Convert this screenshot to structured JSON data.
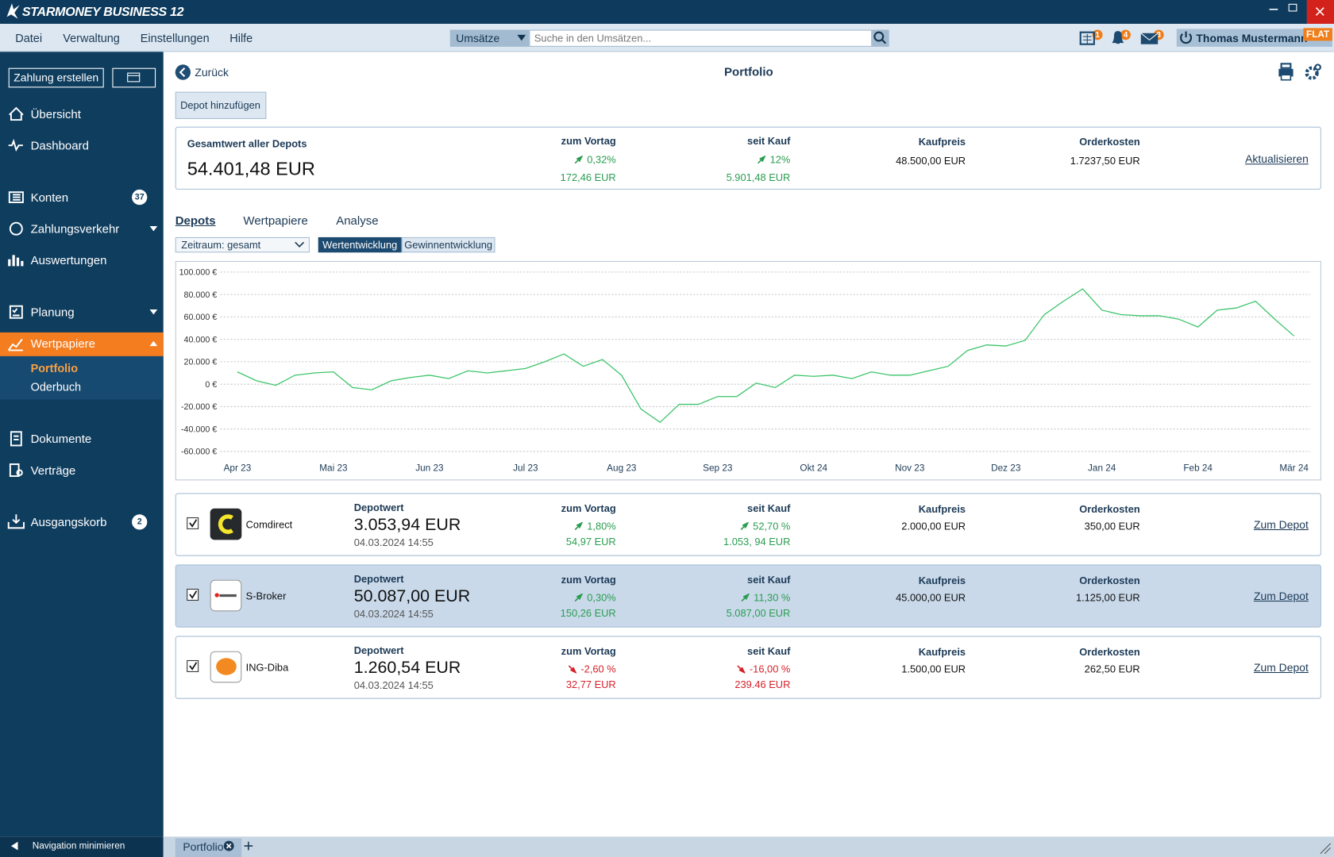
{
  "app": {
    "title": "STARMONEY BUSINESS 12"
  },
  "menu": [
    "Datei",
    "Verwaltung",
    "Einstellungen",
    "Hilfe"
  ],
  "search": {
    "scope": "Umsätze",
    "placeholder": "Suche in den Umsätzen..."
  },
  "notifications": [
    1,
    4,
    3
  ],
  "user": {
    "name": "Thomas Mustermann",
    "plan": "FLAT"
  },
  "sidebar": {
    "create": "Zahlung erstellen",
    "items": [
      {
        "label": "Übersicht"
      },
      {
        "label": "Dashboard"
      },
      {
        "label": "Konten",
        "badge": 37
      },
      {
        "label": "Zahlungsverkehr"
      },
      {
        "label": "Auswertungen"
      },
      {
        "label": "Planung"
      },
      {
        "label": "Wertpapiere"
      },
      {
        "label": "Dokumente"
      },
      {
        "label": "Verträge"
      },
      {
        "label": "Ausgangskorb",
        "badge": 2
      }
    ],
    "subitems": [
      "Portfolio",
      "Oderbuch"
    ],
    "minimize": "Navigation minimieren"
  },
  "page": {
    "back": "Zurück",
    "title": "Portfolio",
    "add": "Depot hinzufügen"
  },
  "headers": {
    "value": "Depotwert",
    "day": "zum Vortag",
    "since": "seit Kauf",
    "price": "Kaufpreis",
    "cost": "Orderkosten"
  },
  "summary": {
    "label": "Gesamtwert aller Depots",
    "value": "54.401,48 EUR",
    "day_pct": "0,32%",
    "day_abs": "172,46 EUR",
    "since_pct": "12%",
    "since_abs": "5.901,48 EUR",
    "price": "48.500,00 EUR",
    "cost": "1.7237,50 EUR",
    "action": "Aktualisieren"
  },
  "tabs": [
    "Depots",
    "Wertpapiere",
    "Analyse"
  ],
  "filters": {
    "period": "Zeitraum: gesamt",
    "modes": [
      "Wertentwicklung",
      "Gewinnentwicklung"
    ]
  },
  "chart_data": {
    "type": "line",
    "color": "#3cc46a",
    "grid": true,
    "categories": [
      "Apr 23",
      null,
      null,
      null,
      null,
      "Mai 23",
      null,
      null,
      null,
      null,
      "Jun 23",
      null,
      null,
      null,
      null,
      "Jul 23",
      null,
      null,
      null,
      null,
      "Aug 23",
      null,
      null,
      null,
      null,
      "Sep 23",
      null,
      null,
      null,
      null,
      "Okt 24",
      null,
      null,
      null,
      null,
      "Nov 23",
      null,
      null,
      null,
      null,
      "Dez 23",
      null,
      null,
      null,
      null,
      "Jan 24",
      null,
      null,
      null,
      null,
      "Feb 24",
      null,
      null,
      null,
      null,
      "Mär 24"
    ],
    "values": [
      11000,
      3000,
      -1000,
      8000,
      10000,
      11000,
      -3000,
      -5000,
      3000,
      6000,
      8000,
      5000,
      12000,
      10000,
      12000,
      14000,
      20000,
      27000,
      16000,
      22000,
      8000,
      -22000,
      -34000,
      -18000,
      -18000,
      -11000,
      -11000,
      1000,
      -3000,
      8000,
      7000,
      8000,
      5000,
      11000,
      8000,
      8000,
      12000,
      16000,
      30000,
      35000,
      34000,
      39000,
      62000,
      74000,
      85000,
      66000,
      62000,
      61000,
      61000,
      58000,
      51000,
      66000,
      68000,
      74000,
      58000,
      43000
    ],
    "ylim": [
      -60000,
      100000
    ],
    "yticks": [
      {
        "value": 100000,
        "label": "100.000 €"
      },
      {
        "value": 80000,
        "label": "80.000 €"
      },
      {
        "value": 60000,
        "label": "60.000 €"
      },
      {
        "value": 40000,
        "label": "40.000 €"
      },
      {
        "value": 20000,
        "label": "20.000 €"
      },
      {
        "value": 0,
        "label": "0 €"
      },
      {
        "value": -20000,
        "label": "-20.000 €"
      },
      {
        "value": -40000,
        "label": "-40.000 €"
      },
      {
        "value": -60000,
        "label": "-60.000 €"
      }
    ]
  },
  "depots": [
    {
      "name": "Comdirect",
      "value": "3.053,94 EUR",
      "date": "04.03.2024 14:55",
      "day_pct": "1,80%",
      "day_abs": "54,97 EUR",
      "since_pct": "52,70 %",
      "since_abs": "1.053, 94 EUR",
      "price": "2.000,00 EUR",
      "cost": "350,00 EUR",
      "action": "Zum Depot"
    },
    {
      "name": "S-Broker",
      "value": "50.087,00 EUR",
      "date": "04.03.2024 14:55",
      "day_pct": "0,30%",
      "day_abs": "150,26 EUR",
      "since_pct": "11,30 %",
      "since_abs": "5.087,00 EUR",
      "price": "45.000,00 EUR",
      "cost": "1.125,00 EUR",
      "action": "Zum Depot"
    },
    {
      "name": "ING-Diba",
      "value": "1.260,54 EUR",
      "date": "04.03.2024 14:55",
      "day_pct": "-2,60 %",
      "day_abs": "32,77 EUR",
      "since_pct": "-16,00 %",
      "since_abs": "239.46 EUR",
      "price": "1.500,00 EUR",
      "cost": "262,50 EUR",
      "action": "Zum Depot"
    }
  ],
  "tabbar": {
    "tab": "Portfolio"
  }
}
